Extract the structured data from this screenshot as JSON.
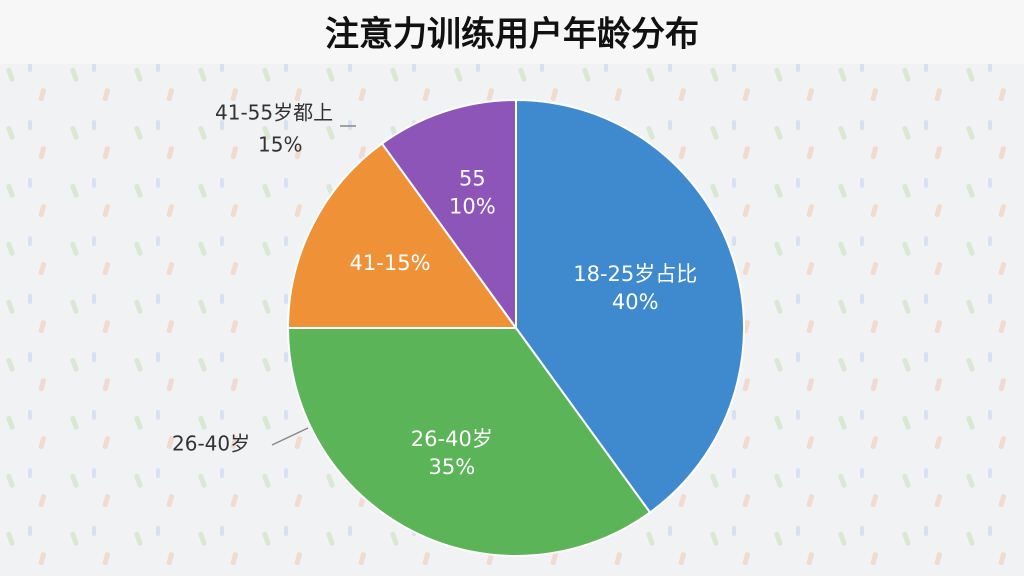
{
  "chart_data": {
    "type": "pie",
    "title": "注意力训练用户年龄分布",
    "categories": [
      "18-25岁占比",
      "26-40岁",
      "41-15%",
      "55"
    ],
    "values": [
      40,
      35,
      15,
      10
    ],
    "value_labels": [
      "40%",
      "35%",
      "15%",
      "10%"
    ],
    "colors": [
      "#3f8acf",
      "#5cb458",
      "#ee9137",
      "#8d55b7"
    ],
    "annotations": [
      "41-55岁都上",
      "26-40岁"
    ]
  }
}
